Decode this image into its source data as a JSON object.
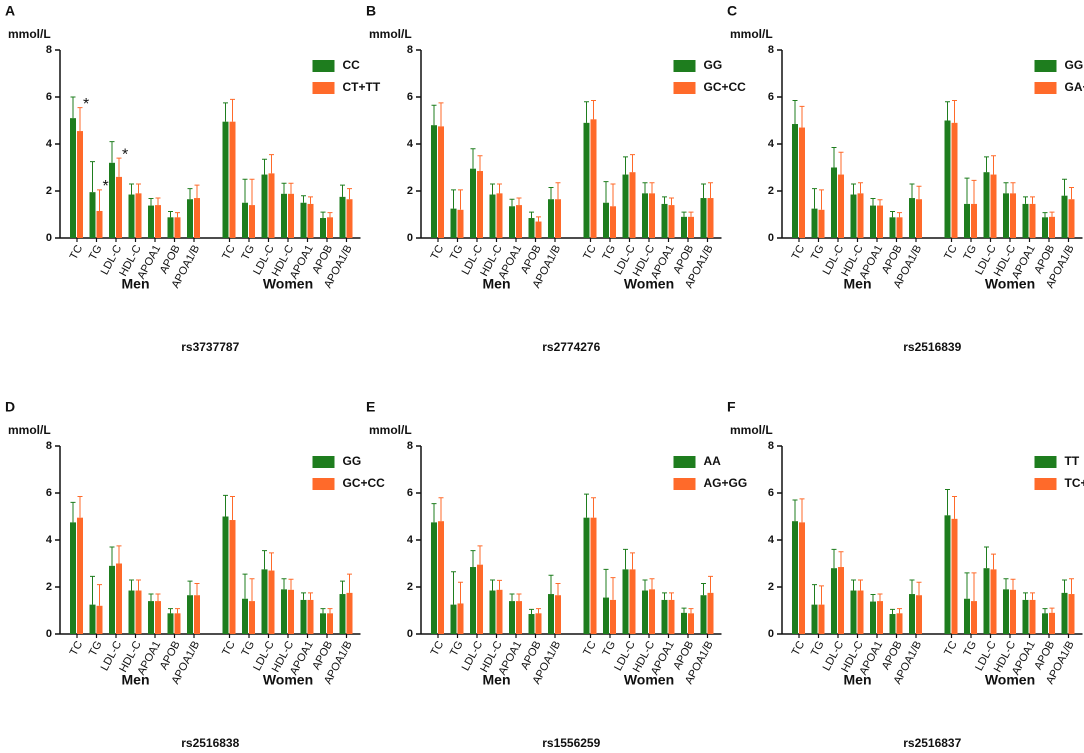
{
  "chart_data": [
    {
      "type": "bar",
      "panel": "A",
      "y_label": "mmol/L",
      "caption": "rs3737787",
      "groups": [
        "Men",
        "Women"
      ],
      "categories": [
        "TC",
        "TG",
        "LDL-C",
        "HDL-C",
        "APOA1",
        "APOB",
        "APOA1/B",
        "TC",
        "TG",
        "LDL-C",
        "HDL-C",
        "APOA1",
        "APOB",
        "APOA1/B"
      ],
      "ylim": [
        0,
        8
      ],
      "yticks": [
        0,
        2,
        4,
        6,
        8
      ],
      "legend": "upper right",
      "series": [
        {
          "name": "CC",
          "color": "#1e7d1e",
          "values": [
            5.1,
            1.95,
            3.2,
            1.85,
            1.38,
            0.88,
            1.65,
            4.95,
            1.5,
            2.7,
            1.88,
            1.5,
            0.85,
            1.75
          ],
          "errors": [
            0.9,
            1.3,
            0.9,
            0.45,
            0.3,
            0.25,
            0.45,
            0.8,
            1.0,
            0.65,
            0.45,
            0.3,
            0.25,
            0.5
          ]
        },
        {
          "name": "CT+TT",
          "color": "#ff6a2a",
          "values": [
            4.55,
            1.15,
            2.6,
            1.9,
            1.4,
            0.88,
            1.7,
            4.95,
            1.4,
            2.75,
            1.88,
            1.45,
            0.88,
            1.65
          ],
          "errors": [
            1.0,
            0.9,
            0.8,
            0.4,
            0.3,
            0.2,
            0.55,
            0.95,
            1.1,
            0.8,
            0.45,
            0.3,
            0.2,
            0.45
          ],
          "annotations": [
            "*",
            "*",
            "*",
            null,
            null,
            null,
            null,
            null,
            null,
            null,
            null,
            null,
            null,
            null
          ]
        }
      ]
    },
    {
      "type": "bar",
      "panel": "B",
      "y_label": "mmol/L",
      "caption": "rs2774276",
      "groups": [
        "Men",
        "Women"
      ],
      "categories": [
        "TC",
        "TG",
        "LDL-C",
        "HDL-C",
        "APOA1",
        "APOB",
        "APOA1/B",
        "TC",
        "TG",
        "LDL-C",
        "HDL-C",
        "APOA1",
        "APOB",
        "APOA1/B"
      ],
      "ylim": [
        0,
        8
      ],
      "yticks": [
        0,
        2,
        4,
        6,
        8
      ],
      "legend": "upper right",
      "series": [
        {
          "name": "GG",
          "color": "#1e7d1e",
          "values": [
            4.8,
            1.25,
            2.95,
            1.85,
            1.35,
            0.85,
            1.65,
            4.9,
            1.5,
            2.7,
            1.9,
            1.45,
            0.9,
            1.7
          ],
          "errors": [
            0.85,
            0.8,
            0.85,
            0.45,
            0.3,
            0.25,
            0.5,
            0.9,
            0.9,
            0.75,
            0.45,
            0.3,
            0.2,
            0.6
          ]
        },
        {
          "name": "GC+CC",
          "color": "#ff6a2a",
          "values": [
            4.75,
            1.2,
            2.85,
            1.9,
            1.4,
            0.7,
            1.65,
            5.05,
            1.35,
            2.8,
            1.9,
            1.4,
            0.9,
            1.7
          ],
          "errors": [
            1.0,
            0.85,
            0.65,
            0.4,
            0.3,
            0.2,
            0.7,
            0.8,
            0.95,
            0.75,
            0.45,
            0.3,
            0.2,
            0.65
          ]
        }
      ]
    },
    {
      "type": "bar",
      "panel": "C",
      "y_label": "mmol/L",
      "caption": "rs2516839",
      "groups": [
        "Men",
        "Women"
      ],
      "categories": [
        "TC",
        "TG",
        "LDL-C",
        "HDL-C",
        "APOA1",
        "APOB",
        "APOA1/B",
        "TC",
        "TG",
        "LDL-C",
        "HDL-C",
        "APOA1",
        "APOB",
        "APOA1/B"
      ],
      "ylim": [
        0,
        8
      ],
      "yticks": [
        0,
        2,
        4,
        6,
        8
      ],
      "legend": "upper right",
      "series": [
        {
          "name": "GG",
          "color": "#1e7d1e",
          "values": [
            4.85,
            1.25,
            3.0,
            1.85,
            1.38,
            0.88,
            1.7,
            5.0,
            1.45,
            2.8,
            1.9,
            1.45,
            0.88,
            1.8
          ],
          "errors": [
            1.0,
            0.85,
            0.85,
            0.45,
            0.3,
            0.25,
            0.6,
            0.8,
            1.1,
            0.65,
            0.45,
            0.3,
            0.2,
            0.7
          ]
        },
        {
          "name": "GA+AA",
          "color": "#ff6a2a",
          "values": [
            4.7,
            1.2,
            2.7,
            1.9,
            1.38,
            0.88,
            1.65,
            4.9,
            1.45,
            2.7,
            1.9,
            1.45,
            0.9,
            1.65
          ],
          "errors": [
            0.9,
            0.85,
            0.95,
            0.45,
            0.25,
            0.2,
            0.55,
            0.95,
            1.0,
            0.8,
            0.45,
            0.3,
            0.2,
            0.5
          ]
        }
      ]
    },
    {
      "type": "bar",
      "panel": "D",
      "y_label": "mmol/L",
      "caption": "rs2516838",
      "groups": [
        "Men",
        "Women"
      ],
      "categories": [
        "TC",
        "TG",
        "LDL-C",
        "HDL-C",
        "APOA1",
        "APOB",
        "APOA1/B",
        "TC",
        "TG",
        "LDL-C",
        "HDL-C",
        "APOA1",
        "APOB",
        "APOA1/B"
      ],
      "ylim": [
        0,
        8
      ],
      "yticks": [
        0,
        2,
        4,
        6,
        8
      ],
      "legend": "upper right",
      "series": [
        {
          "name": "GG",
          "color": "#1e7d1e",
          "values": [
            4.75,
            1.25,
            2.9,
            1.85,
            1.4,
            0.88,
            1.65,
            5.0,
            1.5,
            2.75,
            1.9,
            1.45,
            0.88,
            1.7
          ],
          "errors": [
            0.85,
            1.2,
            0.8,
            0.45,
            0.3,
            0.2,
            0.6,
            0.9,
            1.05,
            0.8,
            0.45,
            0.3,
            0.2,
            0.55
          ]
        },
        {
          "name": "GC+CC",
          "color": "#ff6a2a",
          "values": [
            4.95,
            1.2,
            3.0,
            1.85,
            1.4,
            0.88,
            1.65,
            4.85,
            1.4,
            2.7,
            1.88,
            1.45,
            0.88,
            1.75
          ],
          "errors": [
            0.9,
            0.9,
            0.75,
            0.45,
            0.3,
            0.2,
            0.5,
            1.0,
            0.95,
            0.75,
            0.45,
            0.3,
            0.2,
            0.8
          ]
        }
      ]
    },
    {
      "type": "bar",
      "panel": "E",
      "y_label": "mmol/L",
      "caption": "rs1556259",
      "groups": [
        "Men",
        "Women"
      ],
      "categories": [
        "TC",
        "TG",
        "LDL-C",
        "HDL-C",
        "APOA1",
        "APOB",
        "APOA1/B",
        "TC",
        "TG",
        "LDL-C",
        "HDL-C",
        "APOA1",
        "APOB",
        "APOA1/B"
      ],
      "ylim": [
        0,
        8
      ],
      "yticks": [
        0,
        2,
        4,
        6,
        8
      ],
      "legend": "upper right",
      "series": [
        {
          "name": "AA",
          "color": "#1e7d1e",
          "values": [
            4.75,
            1.25,
            2.85,
            1.85,
            1.4,
            0.85,
            1.7,
            4.95,
            1.55,
            2.75,
            1.85,
            1.45,
            0.9,
            1.65
          ],
          "errors": [
            0.8,
            1.4,
            0.7,
            0.45,
            0.3,
            0.2,
            0.8,
            1.0,
            1.2,
            0.85,
            0.45,
            0.3,
            0.2,
            0.5
          ]
        },
        {
          "name": "AG+GG",
          "color": "#ff6a2a",
          "values": [
            4.8,
            1.3,
            2.95,
            1.88,
            1.4,
            0.88,
            1.65,
            4.95,
            1.45,
            2.75,
            1.9,
            1.45,
            0.88,
            1.75
          ],
          "errors": [
            1.0,
            0.9,
            0.8,
            0.4,
            0.3,
            0.2,
            0.5,
            0.85,
            0.95,
            0.7,
            0.45,
            0.3,
            0.2,
            0.7
          ]
        }
      ]
    },
    {
      "type": "bar",
      "panel": "F",
      "y_label": "mmol/L",
      "caption": "rs2516837",
      "groups": [
        "Men",
        "Women"
      ],
      "categories": [
        "TC",
        "TG",
        "LDL-C",
        "HDL-C",
        "APOA1",
        "APOB",
        "APOA1/B",
        "TC",
        "TG",
        "LDL-C",
        "HDL-C",
        "APOA1",
        "APOB",
        "APOA1/B"
      ],
      "ylim": [
        0,
        8
      ],
      "yticks": [
        0,
        2,
        4,
        6,
        8
      ],
      "legend": "upper right",
      "series": [
        {
          "name": "TT",
          "color": "#1e7d1e",
          "values": [
            4.8,
            1.25,
            2.8,
            1.85,
            1.38,
            0.85,
            1.7,
            5.05,
            1.5,
            2.8,
            1.9,
            1.45,
            0.88,
            1.75
          ],
          "errors": [
            0.9,
            0.85,
            0.8,
            0.45,
            0.3,
            0.2,
            0.6,
            1.1,
            1.1,
            0.9,
            0.45,
            0.3,
            0.2,
            0.55
          ]
        },
        {
          "name": "TC+CC",
          "color": "#ff6a2a",
          "values": [
            4.75,
            1.25,
            2.85,
            1.85,
            1.4,
            0.88,
            1.65,
            4.9,
            1.4,
            2.75,
            1.88,
            1.45,
            0.9,
            1.7
          ],
          "errors": [
            1.0,
            0.8,
            0.65,
            0.45,
            0.3,
            0.2,
            0.55,
            0.95,
            1.2,
            0.65,
            0.45,
            0.3,
            0.2,
            0.65
          ]
        }
      ]
    }
  ]
}
